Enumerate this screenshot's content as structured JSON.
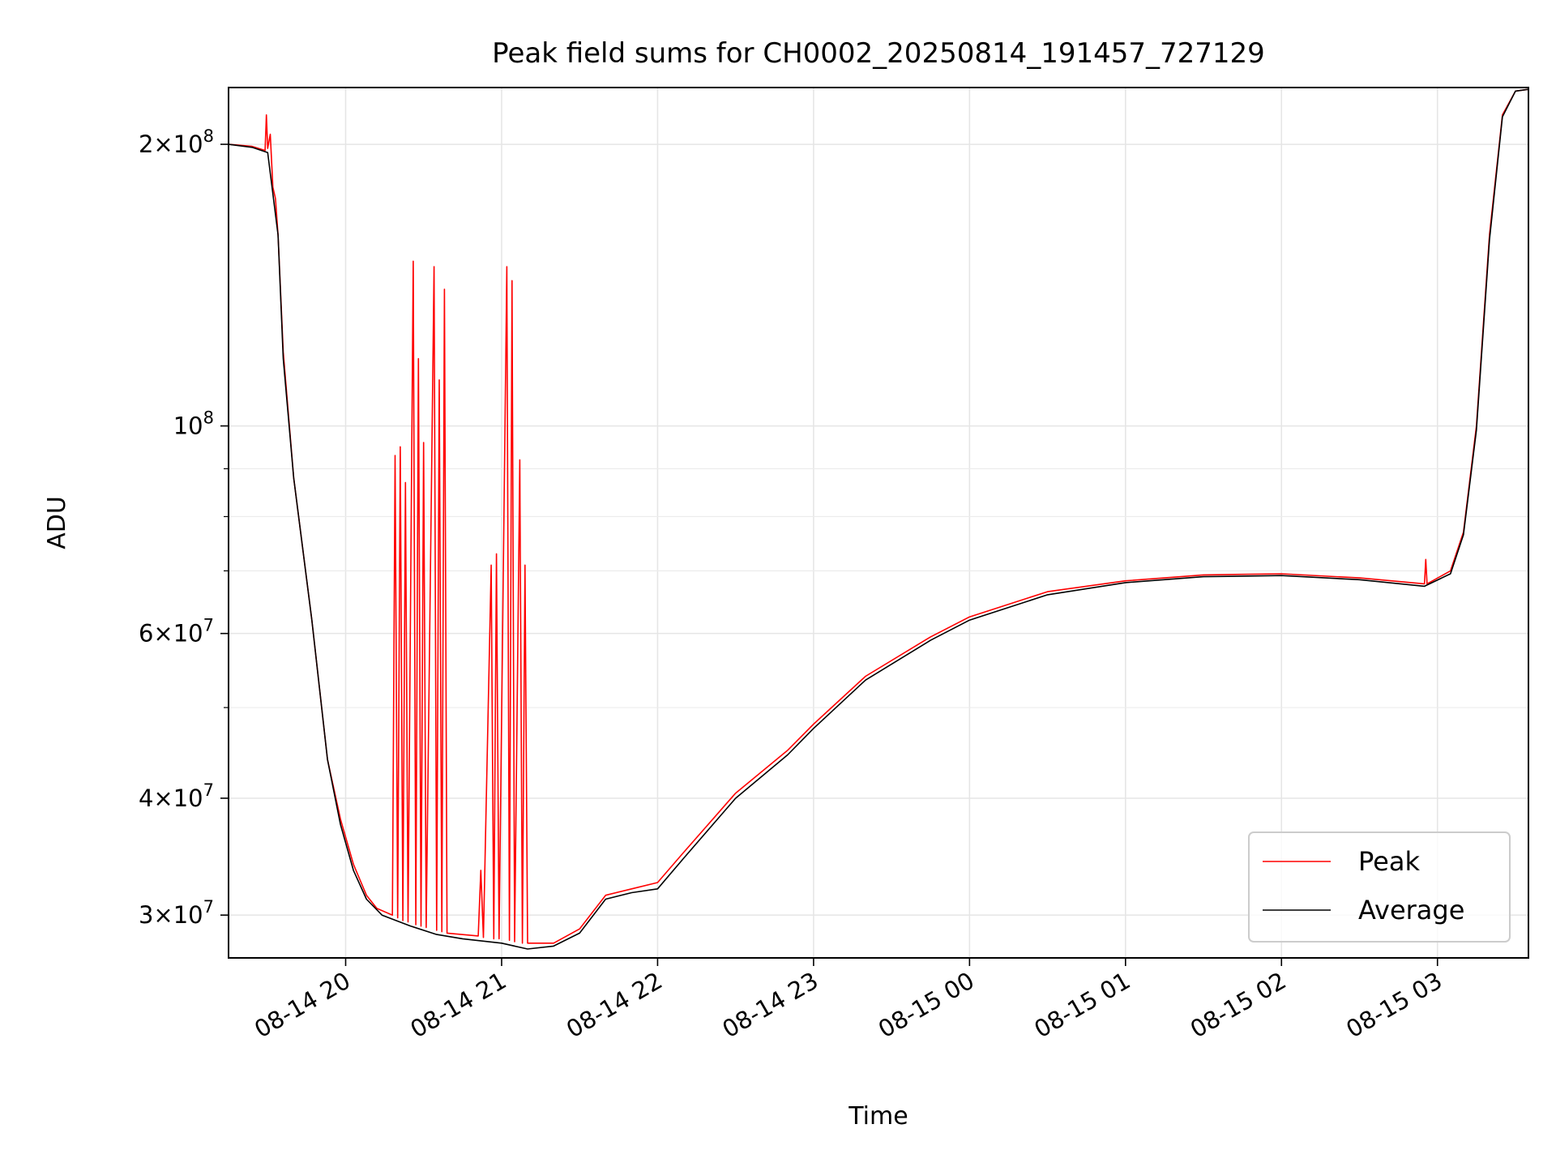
{
  "chart_data": {
    "type": "line",
    "title": "Peak field sums for CH0002_20250814_191457_727129",
    "xlabel": "Time",
    "ylabel": "ADU",
    "x_axis": {
      "type": "time",
      "range": [
        "2025-08-14 19:14:57",
        "2025-08-15 03:35:00"
      ],
      "ticks": [
        {
          "value": "2025-08-14 20:00",
          "label": "08-14 20"
        },
        {
          "value": "2025-08-14 21:00",
          "label": "08-14 21"
        },
        {
          "value": "2025-08-14 22:00",
          "label": "08-14 22"
        },
        {
          "value": "2025-08-14 23:00",
          "label": "08-14 23"
        },
        {
          "value": "2025-08-15 00:00",
          "label": "08-15 00"
        },
        {
          "value": "2025-08-15 01:00",
          "label": "08-15 01"
        },
        {
          "value": "2025-08-15 02:00",
          "label": "08-15 02"
        },
        {
          "value": "2025-08-15 03:00",
          "label": "08-15 03"
        }
      ]
    },
    "y_axis": {
      "scale": "log",
      "range": [
        27000000,
        230000000
      ],
      "ticks": [
        {
          "value": 30000000,
          "mantissa": "3",
          "exp": "7"
        },
        {
          "value": 40000000,
          "mantissa": "4",
          "exp": "7"
        },
        {
          "value": 60000000,
          "mantissa": "6",
          "exp": "7"
        },
        {
          "value": 100000000,
          "mantissa": "",
          "exp": "8"
        },
        {
          "value": 200000000,
          "mantissa": "2",
          "exp": "8"
        }
      ],
      "minor_ticks": [
        50000000,
        70000000,
        80000000,
        90000000
      ]
    },
    "grid": true,
    "legend": {
      "position": "lower-right"
    },
    "series": [
      {
        "name": "Peak",
        "color": "#ff0000",
        "points": [
          [
            "2025-08-14 19:14:57",
            200000000
          ],
          [
            "2025-08-14 19:24",
            199000000
          ],
          [
            "2025-08-14 19:29",
            197000000
          ],
          [
            "2025-08-14 19:29:30",
            215000000
          ],
          [
            "2025-08-14 19:30",
            198000000
          ],
          [
            "2025-08-14 19:31",
            205000000
          ],
          [
            "2025-08-14 19:32",
            180000000
          ],
          [
            "2025-08-14 19:33",
            175000000
          ],
          [
            "2025-08-14 19:34",
            160000000
          ],
          [
            "2025-08-14 19:36",
            120000000
          ],
          [
            "2025-08-14 19:40",
            88000000
          ],
          [
            "2025-08-14 19:47",
            62000000
          ],
          [
            "2025-08-14 19:53",
            44000000
          ],
          [
            "2025-08-14 19:58",
            38000000
          ],
          [
            "2025-08-14 20:03",
            34000000
          ],
          [
            "2025-08-14 20:08",
            31500000
          ],
          [
            "2025-08-14 20:12",
            30500000
          ],
          [
            "2025-08-14 20:18",
            30000000
          ],
          [
            "2025-08-14 20:19",
            93000000
          ],
          [
            "2025-08-14 20:20",
            29800000
          ],
          [
            "2025-08-14 20:21",
            95000000
          ],
          [
            "2025-08-14 20:22",
            29600000
          ],
          [
            "2025-08-14 20:23",
            87000000
          ],
          [
            "2025-08-14 20:24",
            29500000
          ],
          [
            "2025-08-14 20:26",
            150000000
          ],
          [
            "2025-08-14 20:27",
            29300000
          ],
          [
            "2025-08-14 20:28",
            118000000
          ],
          [
            "2025-08-14 20:29",
            29200000
          ],
          [
            "2025-08-14 20:30",
            96000000
          ],
          [
            "2025-08-14 20:31",
            29100000
          ],
          [
            "2025-08-14 20:34",
            148000000
          ],
          [
            "2025-08-14 20:35",
            28900000
          ],
          [
            "2025-08-14 20:36",
            112000000
          ],
          [
            "2025-08-14 20:37",
            28800000
          ],
          [
            "2025-08-14 20:38",
            140000000
          ],
          [
            "2025-08-14 20:39",
            28700000
          ],
          [
            "2025-08-14 20:51",
            28500000
          ],
          [
            "2025-08-14 20:52",
            33500000
          ],
          [
            "2025-08-14 20:53",
            28400000
          ],
          [
            "2025-08-14 20:56",
            71000000
          ],
          [
            "2025-08-14 20:57",
            28300000
          ],
          [
            "2025-08-14 20:58",
            73000000
          ],
          [
            "2025-08-14 20:59",
            28300000
          ],
          [
            "2025-08-14 21:02",
            148000000
          ],
          [
            "2025-08-14 21:03",
            28200000
          ],
          [
            "2025-08-14 21:04",
            143000000
          ],
          [
            "2025-08-14 21:05",
            28100000
          ],
          [
            "2025-08-14 21:07",
            92000000
          ],
          [
            "2025-08-14 21:08",
            28000000
          ],
          [
            "2025-08-14 21:09",
            71000000
          ],
          [
            "2025-08-14 21:10",
            28000000
          ],
          [
            "2025-08-14 21:20",
            28000000
          ],
          [
            "2025-08-14 21:30",
            29000000
          ],
          [
            "2025-08-14 21:40",
            31500000
          ],
          [
            "2025-08-14 21:50",
            32000000
          ],
          [
            "2025-08-14 22:00",
            32500000
          ],
          [
            "2025-08-14 22:10",
            35000000
          ],
          [
            "2025-08-14 22:30",
            40500000
          ],
          [
            "2025-08-14 22:50",
            45000000
          ],
          [
            "2025-08-14 23:00",
            48000000
          ],
          [
            "2025-08-14 23:20",
            54000000
          ],
          [
            "2025-08-14 23:45",
            59500000
          ],
          [
            "2025-08-15 00:00",
            62500000
          ],
          [
            "2025-08-15 00:30",
            66500000
          ],
          [
            "2025-08-15 01:00",
            68300000
          ],
          [
            "2025-08-15 01:30",
            69300000
          ],
          [
            "2025-08-15 02:00",
            69500000
          ],
          [
            "2025-08-15 02:30",
            68800000
          ],
          [
            "2025-08-15 02:55",
            67800000
          ],
          [
            "2025-08-15 02:55:30",
            72000000
          ],
          [
            "2025-08-15 02:56",
            67800000
          ],
          [
            "2025-08-15 03:05",
            70000000
          ],
          [
            "2025-08-15 03:10",
            77000000
          ],
          [
            "2025-08-15 03:15",
            100000000
          ],
          [
            "2025-08-15 03:20",
            160000000
          ],
          [
            "2025-08-15 03:25",
            215000000
          ],
          [
            "2025-08-15 03:30",
            228000000
          ],
          [
            "2025-08-15 03:35",
            229000000
          ]
        ]
      },
      {
        "name": "Average",
        "color": "#000000",
        "points": [
          [
            "2025-08-14 19:14:57",
            200000000
          ],
          [
            "2025-08-14 19:24",
            198500000
          ],
          [
            "2025-08-14 19:30",
            196000000
          ],
          [
            "2025-08-14 19:34",
            160000000
          ],
          [
            "2025-08-14 19:36",
            118000000
          ],
          [
            "2025-08-14 19:40",
            88000000
          ],
          [
            "2025-08-14 19:47",
            62000000
          ],
          [
            "2025-08-14 19:53",
            44000000
          ],
          [
            "2025-08-14 19:58",
            37500000
          ],
          [
            "2025-08-14 20:03",
            33500000
          ],
          [
            "2025-08-14 20:08",
            31200000
          ],
          [
            "2025-08-14 20:14",
            30000000
          ],
          [
            "2025-08-14 20:25",
            29200000
          ],
          [
            "2025-08-14 20:35",
            28600000
          ],
          [
            "2025-08-14 20:45",
            28300000
          ],
          [
            "2025-08-14 21:00",
            28000000
          ],
          [
            "2025-08-14 21:10",
            27600000
          ],
          [
            "2025-08-14 21:20",
            27800000
          ],
          [
            "2025-08-14 21:30",
            28700000
          ],
          [
            "2025-08-14 21:40",
            31200000
          ],
          [
            "2025-08-14 21:50",
            31700000
          ],
          [
            "2025-08-14 22:00",
            32000000
          ],
          [
            "2025-08-14 22:10",
            34500000
          ],
          [
            "2025-08-14 22:30",
            40000000
          ],
          [
            "2025-08-14 22:50",
            44500000
          ],
          [
            "2025-08-14 23:00",
            47500000
          ],
          [
            "2025-08-14 23:20",
            53500000
          ],
          [
            "2025-08-14 23:45",
            59000000
          ],
          [
            "2025-08-15 00:00",
            62000000
          ],
          [
            "2025-08-15 00:30",
            66000000
          ],
          [
            "2025-08-15 01:00",
            68000000
          ],
          [
            "2025-08-15 01:30",
            69000000
          ],
          [
            "2025-08-15 02:00",
            69200000
          ],
          [
            "2025-08-15 02:30",
            68500000
          ],
          [
            "2025-08-15 02:55",
            67400000
          ],
          [
            "2025-08-15 03:05",
            69500000
          ],
          [
            "2025-08-15 03:10",
            76500000
          ],
          [
            "2025-08-15 03:15",
            99000000
          ],
          [
            "2025-08-15 03:20",
            158000000
          ],
          [
            "2025-08-15 03:25",
            214000000
          ],
          [
            "2025-08-15 03:30",
            228000000
          ],
          [
            "2025-08-15 03:35",
            229000000
          ]
        ]
      }
    ]
  }
}
